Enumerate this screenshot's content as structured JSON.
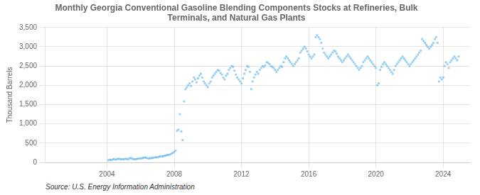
{
  "chart_data": {
    "type": "scatter",
    "title": "Monthly Georgia Conventional Gasoline Blending Components Stocks at Refineries, Bulk\nTerminals, and Natural Gas Plants",
    "y_label": "Thousand Barrels",
    "source": "Source: U.S. Energy Information Administration",
    "marker": "square",
    "grid": true,
    "xlim": [
      2000.3,
      2025.6
    ],
    "xticks": [
      2004,
      2008,
      2012,
      2016,
      2020,
      2024
    ],
    "ylim": [
      0,
      3500
    ],
    "yticks": [
      0,
      500,
      {
        "value": 1000,
        "label": "1,000"
      },
      {
        "value": 1500,
        "label": "1,500"
      },
      {
        "value": 2000,
        "label": "2,000"
      },
      {
        "value": 2500,
        "label": "2,500"
      },
      {
        "value": 3000,
        "label": "3,000"
      },
      {
        "value": 3500,
        "label": "3,500"
      }
    ],
    "x": [
      2004.083,
      2004.167,
      2004.25,
      2004.333,
      2004.417,
      2004.5,
      2004.583,
      2004.667,
      2004.75,
      2004.833,
      2004.917,
      2005.0,
      2005.083,
      2005.167,
      2005.25,
      2005.333,
      2005.417,
      2005.5,
      2005.583,
      2005.667,
      2005.75,
      2005.833,
      2005.917,
      2006.0,
      2006.083,
      2006.167,
      2006.25,
      2006.333,
      2006.417,
      2006.5,
      2006.583,
      2006.667,
      2006.75,
      2006.833,
      2006.917,
      2007.0,
      2007.083,
      2007.167,
      2007.25,
      2007.333,
      2007.417,
      2007.5,
      2007.583,
      2007.667,
      2007.75,
      2007.833,
      2007.917,
      2008.0,
      2008.083,
      2008.167,
      2008.25,
      2008.333,
      2008.417,
      2008.5,
      2008.583,
      2008.667,
      2008.75,
      2008.833,
      2008.917,
      2009.0,
      2009.083,
      2009.167,
      2009.25,
      2009.333,
      2009.417,
      2009.5,
      2009.583,
      2009.667,
      2009.75,
      2009.833,
      2009.917,
      2010.0,
      2010.083,
      2010.167,
      2010.25,
      2010.333,
      2010.417,
      2010.5,
      2010.583,
      2010.667,
      2010.75,
      2010.833,
      2010.917,
      2011.0,
      2011.083,
      2011.167,
      2011.25,
      2011.333,
      2011.417,
      2011.5,
      2011.583,
      2011.667,
      2011.75,
      2011.833,
      2011.917,
      2012.0,
      2012.083,
      2012.167,
      2012.25,
      2012.333,
      2012.417,
      2012.5,
      2012.583,
      2012.667,
      2012.75,
      2012.833,
      2012.917,
      2013.0,
      2013.083,
      2013.167,
      2013.25,
      2013.333,
      2013.417,
      2013.5,
      2013.583,
      2013.667,
      2013.75,
      2013.833,
      2013.917,
      2014.0,
      2014.083,
      2014.167,
      2014.25,
      2014.333,
      2014.417,
      2014.5,
      2014.583,
      2014.667,
      2014.75,
      2014.833,
      2014.917,
      2015.0,
      2015.083,
      2015.167,
      2015.25,
      2015.333,
      2015.417,
      2015.5,
      2015.583,
      2015.667,
      2015.75,
      2015.833,
      2015.917,
      2016.0,
      2016.083,
      2016.167,
      2016.25,
      2016.333,
      2016.417,
      2016.5,
      2016.583,
      2016.667,
      2016.75,
      2016.833,
      2016.917,
      2017.0,
      2017.083,
      2017.167,
      2017.25,
      2017.333,
      2017.417,
      2017.5,
      2017.583,
      2017.667,
      2017.75,
      2017.833,
      2017.917,
      2018.0,
      2018.083,
      2018.167,
      2018.25,
      2018.333,
      2018.417,
      2018.5,
      2018.583,
      2018.667,
      2018.75,
      2018.833,
      2018.917,
      2019.0,
      2019.083,
      2019.167,
      2019.25,
      2019.333,
      2019.417,
      2019.5,
      2019.583,
      2019.667,
      2019.75,
      2019.833,
      2019.917,
      2020.0,
      2020.083,
      2020.167,
      2020.25,
      2020.333,
      2020.417,
      2020.5,
      2020.583,
      2020.667,
      2020.75,
      2020.833,
      2020.917,
      2021.0,
      2021.083,
      2021.167,
      2021.25,
      2021.333,
      2021.417,
      2021.5,
      2021.583,
      2021.667,
      2021.75,
      2021.833,
      2021.917,
      2022.0,
      2022.083,
      2022.167,
      2022.25,
      2022.333,
      2022.417,
      2022.5,
      2022.583,
      2022.667,
      2022.75,
      2022.833,
      2022.917,
      2023.0,
      2023.083,
      2023.167,
      2023.25,
      2023.333,
      2023.417,
      2023.5,
      2023.583,
      2023.667,
      2023.75,
      2023.833,
      2023.917,
      2024.0,
      2024.083,
      2024.167,
      2024.25,
      2024.333,
      2024.417,
      2024.5,
      2024.583,
      2024.667,
      2024.75,
      2024.833,
      2024.917
    ],
    "values": [
      55,
      70,
      60,
      75,
      85,
      70,
      80,
      90,
      95,
      75,
      85,
      80,
      95,
      90,
      75,
      105,
      115,
      95,
      85,
      80,
      90,
      95,
      105,
      100,
      110,
      115,
      125,
      120,
      105,
      100,
      115,
      110,
      120,
      125,
      135,
      130,
      145,
      155,
      150,
      160,
      170,
      180,
      190,
      195,
      205,
      225,
      245,
      275,
      305,
      820,
      850,
      1250,
      800,
      580,
      1580,
      1900,
      1950,
      2000,
      2050,
      1980,
      2100,
      2200,
      2150,
      2080,
      2180,
      2250,
      2300,
      2200,
      2100,
      2050,
      2000,
      1950,
      2050,
      2100,
      2200,
      2250,
      2300,
      2350,
      2400,
      2380,
      2320,
      2280,
      2200,
      2150,
      2250,
      2300,
      2400,
      2450,
      2500,
      2480,
      2380,
      2280,
      2200,
      2150,
      2100,
      2050,
      2180,
      2300,
      2400,
      2500,
      2480,
      2350,
      1900,
      2100,
      2200,
      2280,
      2350,
      2300,
      2400,
      2450,
      2500,
      2480,
      2520,
      2600,
      2580,
      2550,
      2500,
      2480,
      2450,
      2400,
      2350,
      2400,
      2450,
      2500,
      2480,
      2600,
      2700,
      2750,
      2700,
      2650,
      2600,
      2550,
      2500,
      2550,
      2600,
      2650,
      2700,
      2850,
      2900,
      2950,
      3000,
      2950,
      2880,
      2800,
      2750,
      2700,
      2750,
      2800,
      3250,
      3300,
      3250,
      3200,
      3100,
      2950,
      2850,
      2800,
      2750,
      2700,
      2750,
      2800,
      2850,
      2900,
      2880,
      2820,
      2750,
      2700,
      2650,
      2600,
      2650,
      2700,
      2750,
      2800,
      2750,
      2700,
      2650,
      2600,
      2550,
      2500,
      2450,
      2400,
      2450,
      2500,
      2600,
      2650,
      2700,
      2750,
      2700,
      2650,
      2600,
      2550,
      2500,
      2450,
      2000,
      2050,
      2400,
      2480,
      2550,
      2600,
      2550,
      2500,
      2450,
      2400,
      2350,
      2300,
      2400,
      2500,
      2550,
      2600,
      2650,
      2700,
      2750,
      2700,
      2650,
      2600,
      2550,
      2500,
      2550,
      2600,
      2650,
      2700,
      2750,
      2800,
      2850,
      2900,
      3200,
      3150,
      3100,
      3050,
      3000,
      2950,
      3000,
      3050,
      3100,
      3200,
      3250,
      3100,
      2100,
      2200,
      2150,
      2200,
      2500,
      2600,
      2550,
      2450,
      2600,
      2650,
      2700,
      2750,
      2700,
      2650,
      2750
    ]
  }
}
